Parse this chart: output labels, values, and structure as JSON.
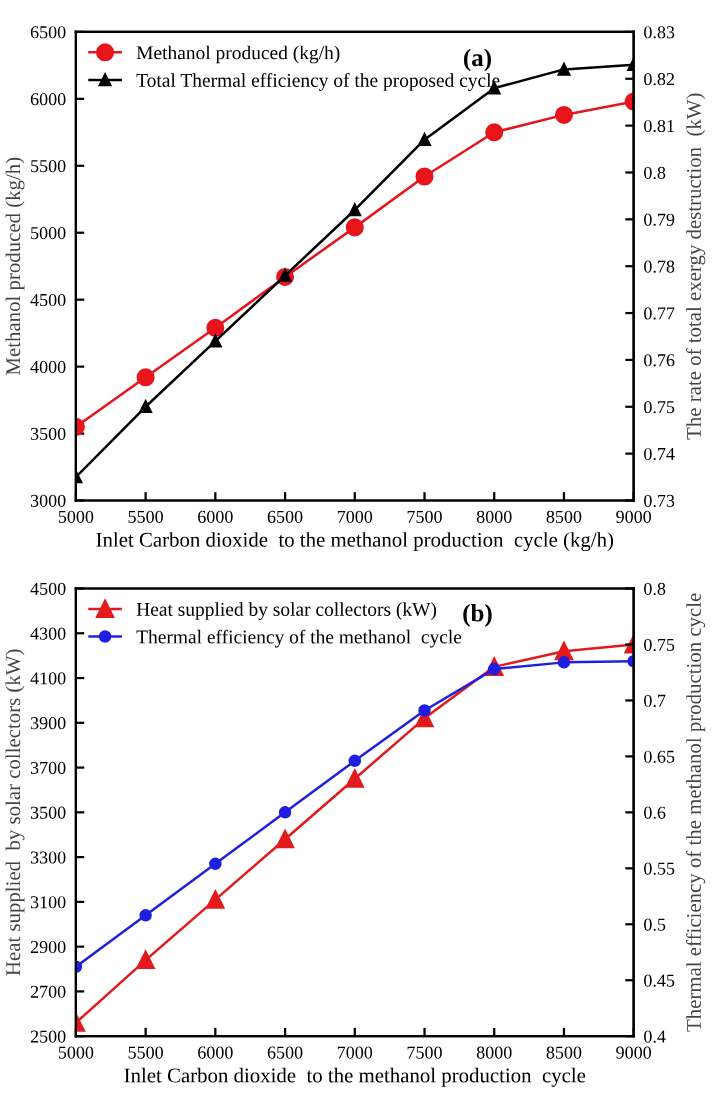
{
  "chart_data": [
    {
      "type": "line",
      "xlabel": "Inlet Carbon dioxide  to the methanol production  cycle (kg/h)",
      "ylabel": "Methanol produced (kg/h)",
      "y2label": "The rate of total exergy destruction  (kW)",
      "annotations": [
        "(a)"
      ],
      "x": [
        5000,
        5500,
        6000,
        6500,
        7000,
        7500,
        8000,
        8500,
        9000
      ],
      "series": [
        {
          "name": "Methanol produced (kg/h)",
          "color": "#e8141c",
          "marker": "circle",
          "values": [
            3550,
            3920,
            4290,
            4670,
            5040,
            5420,
            5750,
            5880,
            5980
          ]
        },
        {
          "name": "Total Thermal efficiency of the proposed cycle",
          "color": "#000000",
          "marker": "triangle",
          "axis": "y2",
          "values": [
            0.735,
            0.75,
            0.764,
            0.778,
            0.792,
            0.807,
            0.818,
            0.822,
            0.823
          ]
        }
      ],
      "xlim": [
        5000,
        9000
      ],
      "xticks": [
        5000,
        5500,
        6000,
        6500,
        7000,
        7500,
        8000,
        8500,
        9000
      ],
      "ylim": [
        3000,
        6500
      ],
      "yticks": [
        3000,
        3500,
        4000,
        4500,
        5000,
        5500,
        6000,
        6500
      ],
      "y2lim": [
        0.73,
        0.83
      ],
      "y2ticks": [
        0.73,
        0.74,
        0.75,
        0.76,
        0.77,
        0.78,
        0.79,
        0.8,
        0.81,
        0.82,
        0.83
      ],
      "legend": "top left",
      "grid": false,
      "line_style": "solid"
    },
    {
      "type": "line",
      "xlabel": "Inlet Carbon dioxide  to the methanol production  cycle",
      "ylabel": "Heat supplied  by solar collectors (kW)",
      "y2label": "Thermal efficiency of the methanol production cycle",
      "annotations": [
        "(b)"
      ],
      "x": [
        5000,
        5500,
        6000,
        6500,
        7000,
        7500,
        8000,
        8500,
        9000
      ],
      "series": [
        {
          "name": "Heat supplied by solar collectors (kW)",
          "color": "#e31a1c",
          "marker": "triangle",
          "values": [
            2560,
            2840,
            3110,
            3380,
            3650,
            3920,
            4150,
            4220,
            4250
          ]
        },
        {
          "name": "Thermal efficiency of the methanol  cycle",
          "color": "#1f1fe0",
          "marker": "circle",
          "axis": "y2",
          "values": [
            0.462,
            0.508,
            0.554,
            0.6,
            0.646,
            0.691,
            0.728,
            0.734,
            0.735
          ]
        }
      ],
      "xlim": [
        5000,
        9000
      ],
      "xticks": [
        5000,
        5500,
        6000,
        6500,
        7000,
        7500,
        8000,
        8500,
        9000
      ],
      "ylim": [
        2500,
        4500
      ],
      "yticks": [
        2500,
        2700,
        2900,
        3100,
        3300,
        3500,
        3700,
        3900,
        4100,
        4300,
        4500
      ],
      "y2lim": [
        0.4,
        0.8
      ],
      "y2ticks": [
        0.4,
        0.45,
        0.5,
        0.55,
        0.6,
        0.65,
        0.7,
        0.75,
        0.8
      ],
      "legend": "top left",
      "grid": false,
      "line_style": "solid"
    }
  ]
}
